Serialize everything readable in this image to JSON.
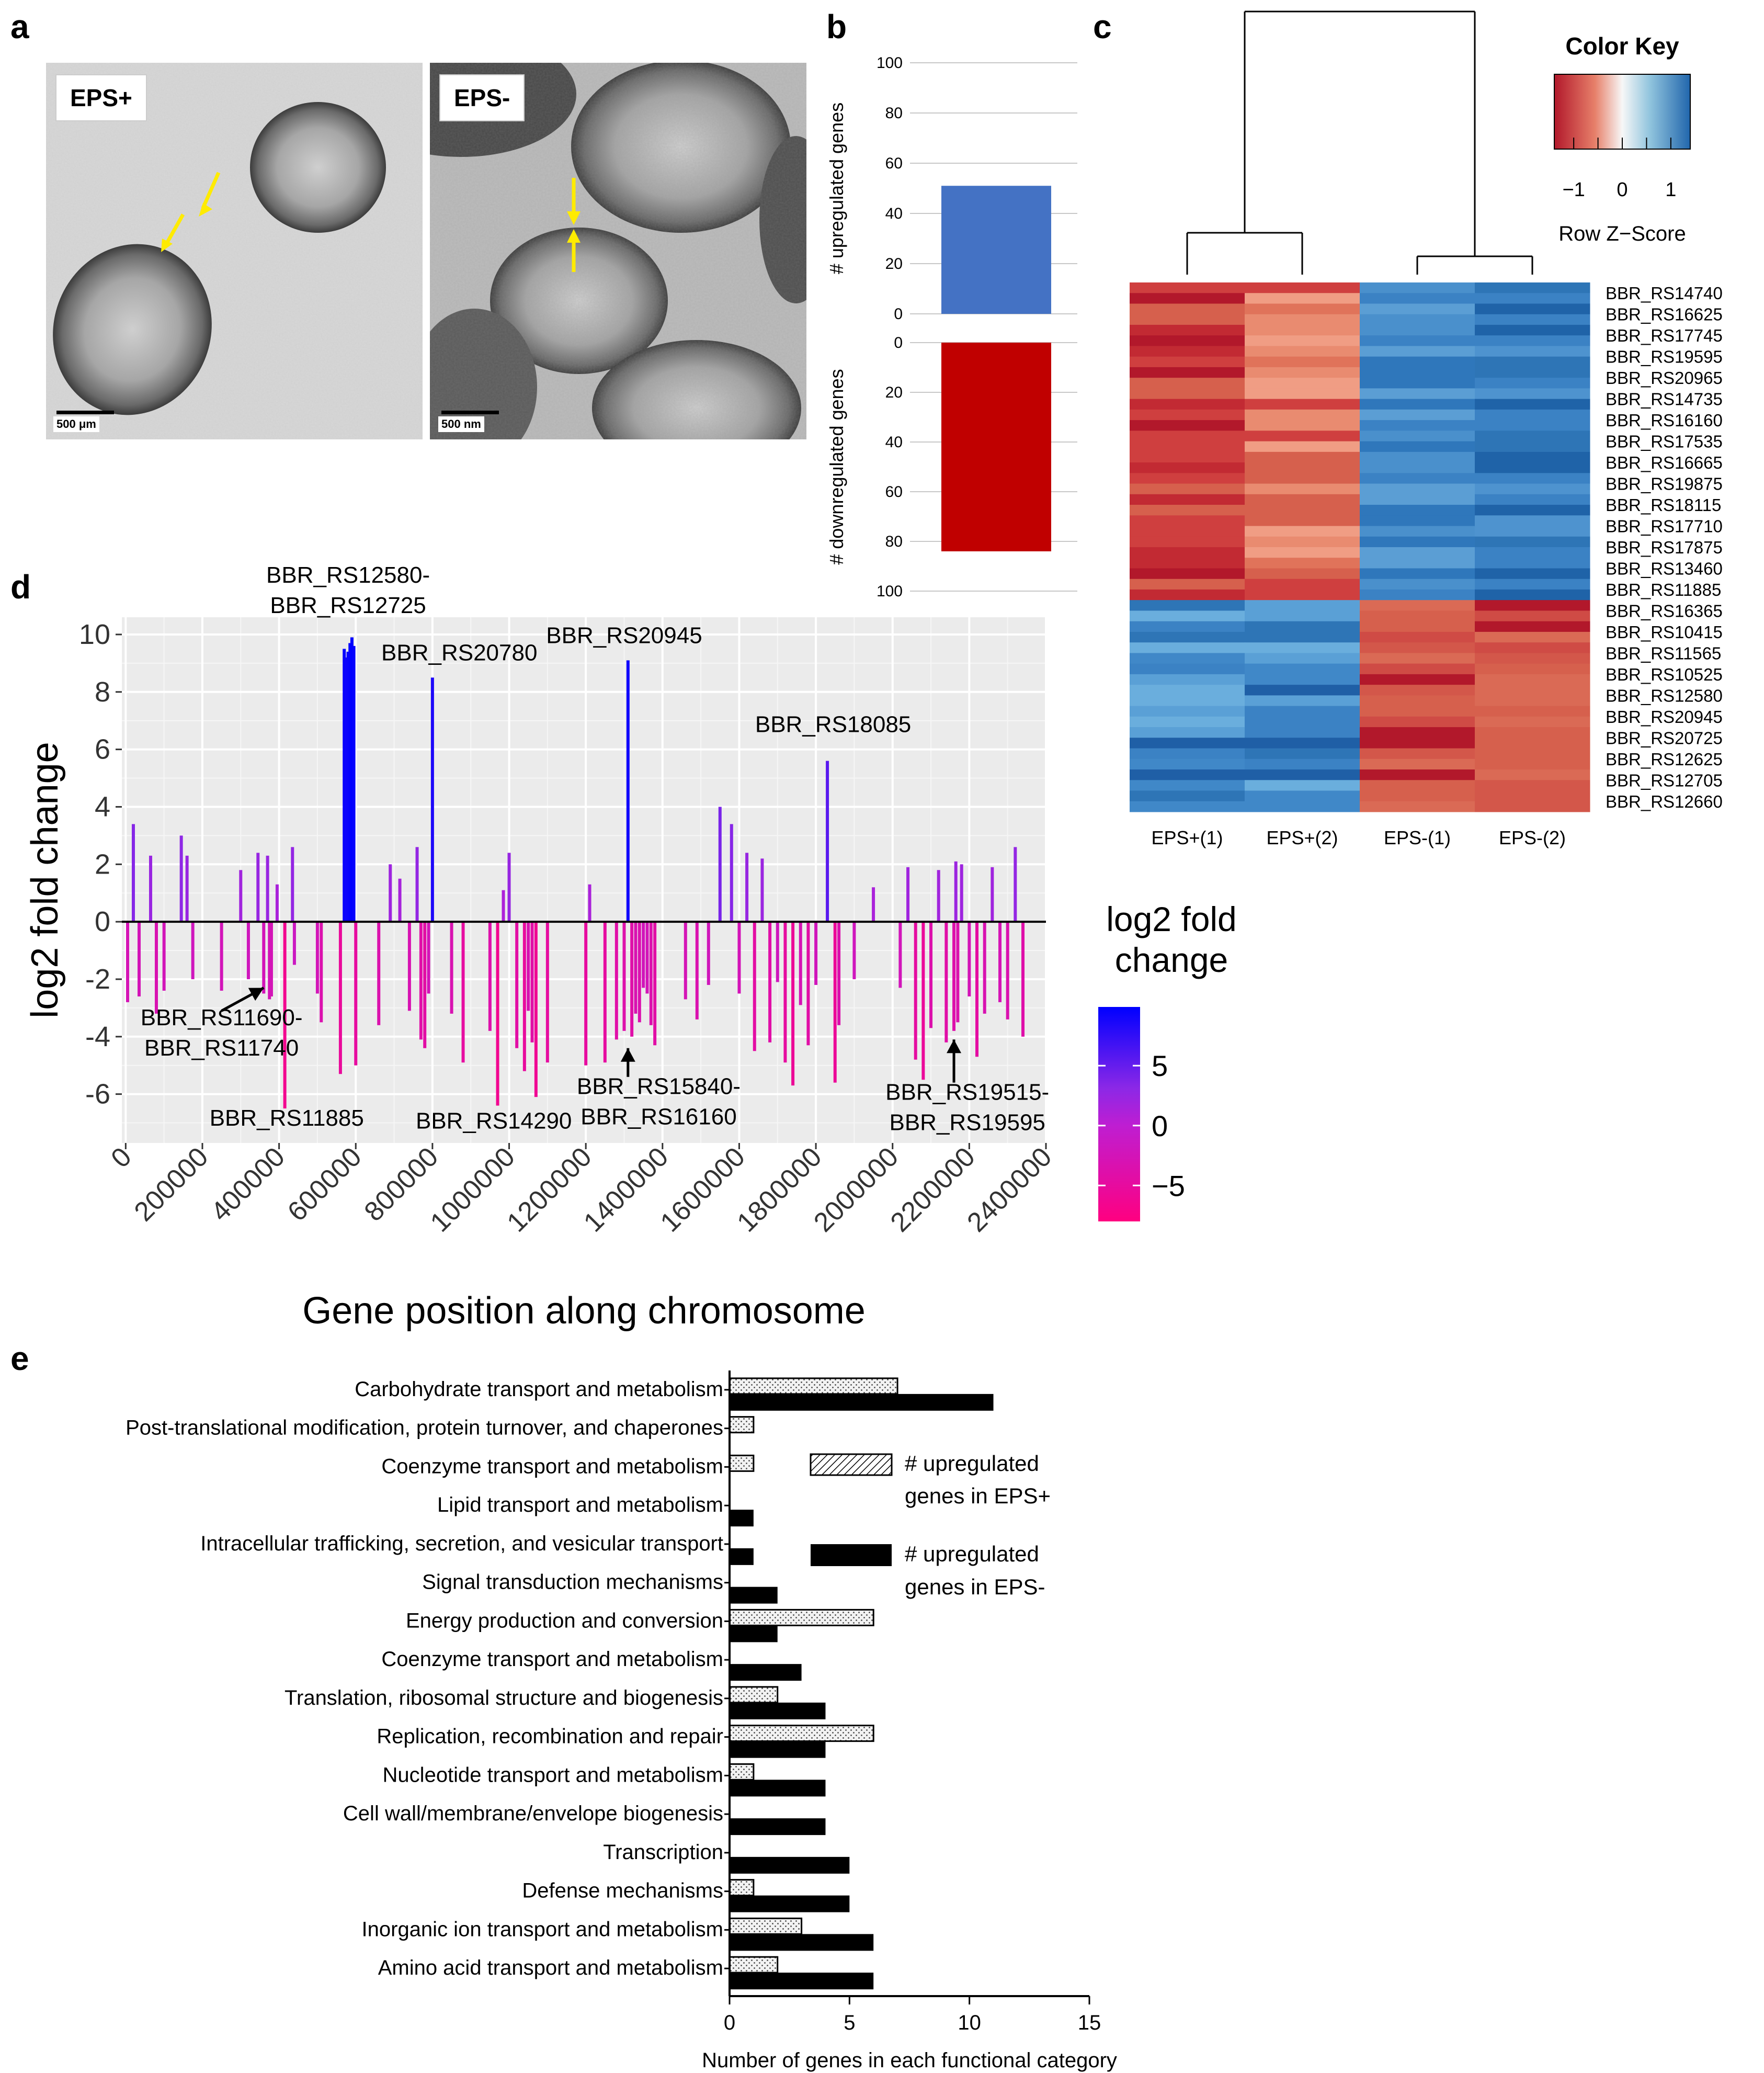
{
  "panels": {
    "a": "a",
    "b": "b",
    "c": "c",
    "d": "d",
    "e": "e"
  },
  "panel_a": {
    "images": [
      {
        "label": "EPS+",
        "scalebar": "500 μm"
      },
      {
        "label": "EPS-",
        "scalebar": "500 nm"
      }
    ]
  },
  "chart_data": [
    {
      "id": "b",
      "type": "bar",
      "title": "",
      "subplots": [
        {
          "ylabel": "# upregulated genes",
          "ylim": [
            0,
            100
          ],
          "ticks": [
            0,
            20,
            40,
            60,
            80,
            100
          ],
          "tick_labels": [
            "0",
            "20",
            "40",
            "60",
            "80",
            "100"
          ],
          "value": 51,
          "color": "#4472c4"
        },
        {
          "ylabel": "# downregulated genes",
          "ylim": [
            0,
            100
          ],
          "ticks": [
            0,
            20,
            40,
            60,
            80,
            100
          ],
          "tick_labels": [
            "0",
            "20",
            "40",
            "60",
            "80",
            "100"
          ],
          "value": 84,
          "color": "#c00000",
          "inverted": true
        }
      ]
    },
    {
      "id": "c",
      "type": "heatmap",
      "color_key": {
        "title": "Color Key",
        "xlabel": "Row Z−Score",
        "ticks": [
          -1,
          0,
          1
        ],
        "tick_labels": [
          "−1",
          "0",
          "1"
        ]
      },
      "columns": [
        "EPS+(1)",
        "EPS+(2)",
        "EPS-(1)",
        "EPS-(2)"
      ],
      "rows": [
        "BBR_RS14740",
        "BBR_RS16625",
        "BBR_RS17745",
        "BBR_RS19595",
        "BBR_RS20965",
        "BBR_RS14735",
        "BBR_RS16160",
        "BBR_RS17535",
        "BBR_RS16665",
        "BBR_RS19875",
        "BBR_RS18115",
        "BBR_RS17710",
        "BBR_RS17875",
        "BBR_RS13460",
        "BBR_RS11885",
        "BBR_RS16365",
        "BBR_RS10415",
        "BBR_RS11565",
        "BBR_RS10525",
        "BBR_RS12580",
        "BBR_RS20945",
        "BBR_RS20725",
        "BBR_RS12625",
        "BBR_RS12705",
        "BBR_RS12660"
      ],
      "cluster_groups": [
        [
          0,
          1
        ],
        [
          2,
          3
        ]
      ],
      "row_split": 15
    },
    {
      "id": "d",
      "type": "bar",
      "xlabel": "Gene position along chromosome",
      "ylabel": "log2 fold change",
      "xlim": [
        -10000,
        2400000
      ],
      "ylim": [
        -7.7,
        10.6
      ],
      "xticks": [
        0,
        200000,
        400000,
        600000,
        800000,
        1000000,
        1200000,
        1400000,
        1600000,
        1800000,
        2000000,
        2200000,
        2400000
      ],
      "xtick_labels": [
        "0",
        "200000",
        "400000",
        "600000",
        "800000",
        "1000000",
        "1200000",
        "1400000",
        "1600000",
        "1800000",
        "2000000",
        "2200000",
        "2400000"
      ],
      "yticks": [
        -6,
        -4,
        -2,
        0,
        2,
        4,
        6,
        8,
        10
      ],
      "ytick_labels": [
        "-6",
        "-4",
        "-2",
        "0",
        "2",
        "4",
        "6",
        "8",
        "10"
      ],
      "legend": {
        "title_line1": "log2 fold",
        "title_line2": "change",
        "ticks": [
          5,
          0,
          -5
        ],
        "tick_labels": [
          "5",
          "0",
          "−5"
        ],
        "range": [
          -8,
          9.9
        ]
      },
      "x": [
        5000,
        20000,
        35000,
        65000,
        80000,
        100000,
        145000,
        160000,
        175000,
        250000,
        300000,
        320000,
        345000,
        360000,
        370000,
        375000,
        380000,
        395000,
        415000,
        435000,
        440000,
        500000,
        510000,
        560000,
        570000,
        575000,
        580000,
        585000,
        590000,
        595000,
        600000,
        660000,
        690000,
        715000,
        740000,
        760000,
        770000,
        780000,
        790000,
        800000,
        850000,
        880000,
        950000,
        970000,
        985000,
        1000000,
        1020000,
        1040000,
        1050000,
        1060000,
        1070000,
        1100000,
        1200000,
        1210000,
        1250000,
        1280000,
        1300000,
        1310000,
        1320000,
        1330000,
        1340000,
        1350000,
        1360000,
        1370000,
        1380000,
        1460000,
        1490000,
        1520000,
        1550000,
        1580000,
        1600000,
        1620000,
        1640000,
        1660000,
        1680000,
        1700000,
        1720000,
        1740000,
        1760000,
        1780000,
        1800000,
        1830000,
        1850000,
        1860000,
        1900000,
        1950000,
        2020000,
        2040000,
        2060000,
        2080000,
        2100000,
        2120000,
        2140000,
        2160000,
        2165000,
        2170000,
        2180000,
        2200000,
        2220000,
        2240000,
        2260000,
        2280000,
        2300000,
        2320000,
        2340000
      ],
      "values": [
        -2.8,
        3.4,
        -2.6,
        2.3,
        -3.2,
        -2.4,
        3.0,
        2.3,
        -2.0,
        -2.4,
        1.8,
        -2.0,
        2.4,
        -2.5,
        2.3,
        -2.7,
        -2.6,
        1.3,
        -6.5,
        2.6,
        -1.5,
        -2.5,
        -3.5,
        -5.3,
        9.5,
        9.2,
        9.4,
        9.7,
        9.9,
        9.6,
        -5.0,
        -3.6,
        2.0,
        1.5,
        -3.1,
        2.6,
        -4.1,
        -4.4,
        -2.5,
        8.5,
        -3.2,
        -4.9,
        -3.8,
        -6.4,
        1.1,
        2.4,
        -4.4,
        -5.2,
        -3.1,
        -4.2,
        -6.1,
        -4.9,
        -5.0,
        1.3,
        -4.9,
        -4.1,
        -3.8,
        9.1,
        -4.0,
        -3.2,
        -3.5,
        -2.3,
        -2.5,
        -3.6,
        -4.3,
        -2.7,
        -3.4,
        -2.2,
        4.0,
        3.4,
        -2.5,
        2.4,
        -4.5,
        2.2,
        -4.2,
        -2.1,
        -4.9,
        -5.7,
        -2.9,
        -4.3,
        -2.2,
        5.6,
        -5.6,
        -3.6,
        -2.0,
        1.2,
        -2.3,
        1.9,
        -4.8,
        -5.5,
        -3.7,
        1.8,
        -4.2,
        -3.8,
        2.1,
        -3.5,
        2.0,
        -2.6,
        -4.7,
        -3.2,
        1.9,
        -2.8,
        -3.4,
        2.6,
        -4.0
      ],
      "annotations": [
        {
          "lines": [
            "BBR_RS12580-",
            "BBR_RS12725"
          ],
          "x": 580000,
          "y": 11.8
        },
        {
          "lines": [
            "BBR_RS20780"
          ],
          "x": 870000,
          "y": 9.1
        },
        {
          "lines": [
            "BBR_RS20945"
          ],
          "x": 1300000,
          "y": 9.7
        },
        {
          "lines": [
            "BBR_RS18085"
          ],
          "x": 1845000,
          "y": 6.6
        },
        {
          "lines": [
            "BBR_RS11690-",
            "BBR_RS11740"
          ],
          "x": 250000,
          "y": -3.6
        },
        {
          "lines": [
            "BBR_RS11885"
          ],
          "x": 420000,
          "y": -7.1
        },
        {
          "lines": [
            "BBR_RS14290"
          ],
          "x": 960000,
          "y": -7.2
        },
        {
          "lines": [
            "BBR_RS15840-",
            "BBR_RS16160"
          ],
          "x": 1390000,
          "y": -6.0
        },
        {
          "lines": [
            "BBR_RS19515-",
            "BBR_RS19595"
          ],
          "x": 2195000,
          "y": -6.2
        }
      ]
    },
    {
      "id": "e",
      "type": "bar",
      "orientation": "horizontal",
      "xlabel": "Number of genes in each functional category",
      "xlim": [
        0,
        15
      ],
      "xticks": [
        0,
        5,
        10,
        15
      ],
      "xtick_labels": [
        "0",
        "5",
        "10",
        "15"
      ],
      "categories": [
        "Carbohydrate transport and metabolism",
        "Post-translational modification, protein turnover, and chaperones",
        "Coenzyme transport and metabolism",
        "Lipid transport and metabolism",
        "Intracellular trafficking, secretion, and vesicular transport",
        "Signal transduction mechanisms",
        "Energy production and conversion",
        "Coenzyme transport and metabolism",
        "Translation, ribosomal structure and biogenesis",
        "Replication, recombination and repair",
        "Nucleotide transport and metabolism",
        "Cell wall/membrane/envelope biogenesis",
        "Transcription",
        "Defense mechanisms",
        "Inorganic ion transport and metabolism",
        "Amino acid transport and metabolism"
      ],
      "series": [
        {
          "name": "# upregulated genes in EPS+",
          "legend_lines": [
            "# upregulated",
            "genes in EPS+"
          ],
          "values": [
            7,
            1,
            1,
            0,
            0,
            0,
            6,
            0,
            2,
            6,
            1,
            0,
            0,
            1,
            3,
            2
          ]
        },
        {
          "name": "# upregulated genes in EPS-",
          "legend_lines": [
            "# upregulated",
            "genes in EPS-"
          ],
          "values": [
            11,
            0,
            0,
            1,
            1,
            2,
            2,
            3,
            4,
            4,
            4,
            4,
            5,
            5,
            6,
            6
          ]
        }
      ]
    }
  ]
}
